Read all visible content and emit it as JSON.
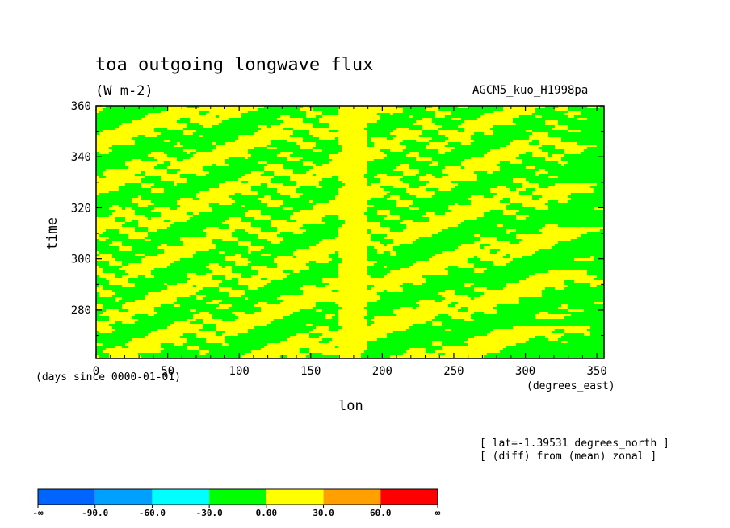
{
  "chart_data": {
    "type": "heatmap",
    "title": "toa outgoing longwave flux",
    "units": "(W m-2)",
    "run_label": "AGCM5_kuo_H1998pa",
    "xlabel": "lon",
    "xunits": "(degrees_east)",
    "ylabel": "time",
    "yunits": "(days since 0000-01-01)",
    "xlim": [
      0,
      355
    ],
    "ylim": [
      261,
      360
    ],
    "xticks": [
      0,
      50,
      100,
      150,
      200,
      250,
      300,
      350
    ],
    "yticks": [
      280,
      300,
      320,
      340,
      360
    ],
    "annotations": [
      "[ lat=-1.39531 degrees_north ]",
      "[ (diff) from (mean) zonal ]"
    ],
    "colorbar": {
      "labels": [
        "-∞",
        "-90.0",
        "-60.0",
        "-30.0",
        "0.00",
        "30.0",
        "60.0",
        "∞"
      ],
      "colors": [
        "#0064ff",
        "#00a0ff",
        "#00ffff",
        "#00ff00",
        "#ffff00",
        "#ffa000",
        "#ff0000"
      ]
    },
    "field_description": "Filled contours of OLR deviation; mostly -30 to 0 (green) and 0 to 30 (yellow) with a persistent yellow band near 175-190 degrees_east and streaks sloping eastward over time."
  }
}
